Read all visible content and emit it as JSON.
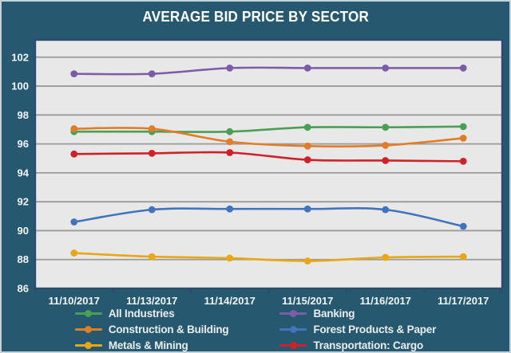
{
  "chart_data": {
    "type": "line",
    "title": "AVERAGE BID PRICE BY SECTOR",
    "categories": [
      "11/10/2017",
      "11/13/2017",
      "11/14/2017",
      "11/15/2017",
      "11/16/2017",
      "11/17/2017"
    ],
    "series": [
      {
        "name": "All Industries",
        "color": "#4a9e55",
        "values": [
          96.85,
          96.85,
          96.85,
          97.15,
          97.15,
          97.2
        ]
      },
      {
        "name": "Banking",
        "color": "#7b5ca8",
        "values": [
          100.85,
          100.85,
          101.25,
          101.25,
          101.25,
          101.25
        ]
      },
      {
        "name": "Construction & Building",
        "color": "#e07e28",
        "values": [
          97.05,
          97.05,
          96.15,
          95.85,
          95.9,
          96.4
        ]
      },
      {
        "name": "Forest Products & Paper",
        "color": "#4273bd",
        "values": [
          90.6,
          91.45,
          91.5,
          91.5,
          91.45,
          90.3
        ]
      },
      {
        "name": "Metals & Mining",
        "color": "#e8a713",
        "values": [
          88.45,
          88.2,
          88.1,
          87.9,
          88.15,
          88.2
        ]
      },
      {
        "name": "Transportation: Cargo",
        "color": "#cf2127",
        "values": [
          95.3,
          95.35,
          95.4,
          94.9,
          94.85,
          94.8
        ]
      }
    ],
    "ylim": [
      86,
      103.2
    ],
    "yticks": [
      86,
      88,
      90,
      92,
      94,
      96,
      98,
      100,
      102
    ],
    "grid": true,
    "legend_position": "bottom",
    "legend_columns": [
      [
        "All Industries",
        "Construction & Building",
        "Metals & Mining"
      ],
      [
        "Banking",
        "Forest Products & Paper",
        "Transportation: Cargo"
      ]
    ]
  },
  "colors": {
    "background": "#26596f",
    "frame_border": "#c3d1d8",
    "plot_bg": "#e9e8e8",
    "plot_border": "#2d4a72",
    "gridline": "#9a9a9a",
    "axis_text": "#f2f6f8",
    "legend_text": "#e9edef",
    "title_text": "#ffffff"
  }
}
